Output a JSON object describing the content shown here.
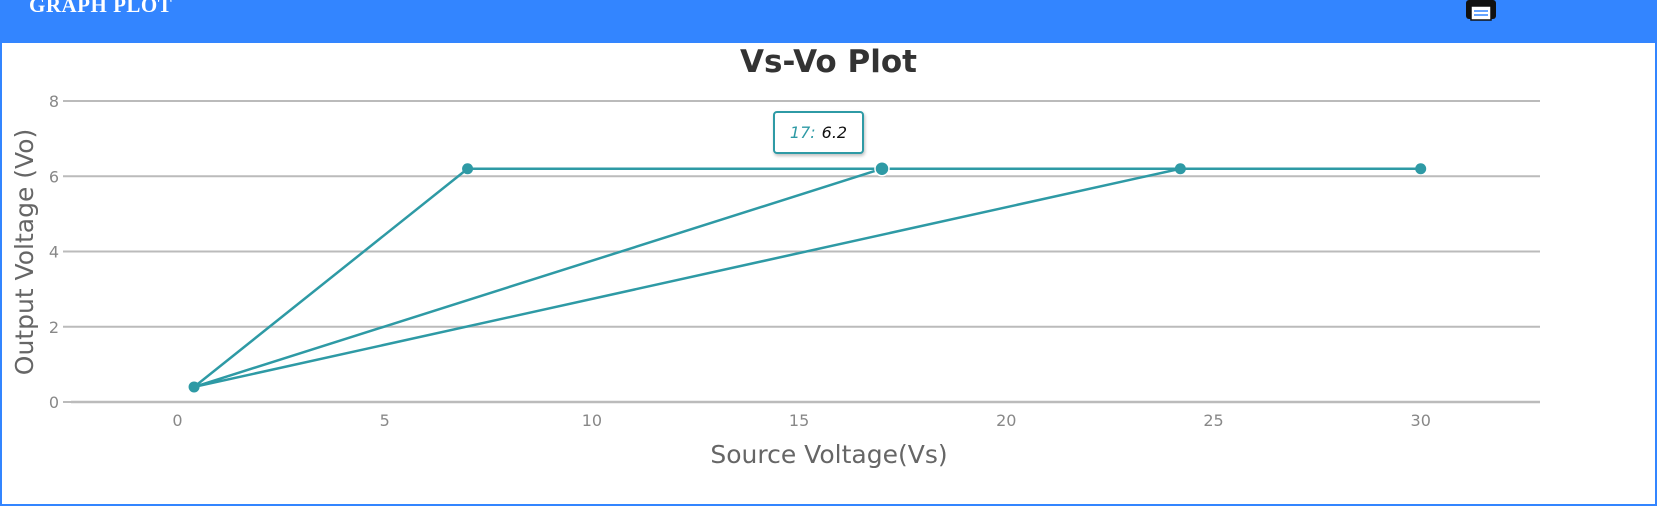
{
  "header": {
    "title": "GRAPH PLOT"
  },
  "colors": {
    "header": "#3385ff",
    "series": "#2e9aa5",
    "grid": "#bbbbbb"
  },
  "icons": {
    "print": "printer-icon"
  },
  "chart_data": {
    "type": "line",
    "title": "Vs-Vo Plot",
    "xlabel": "Source Voltage(Vs)",
    "ylabel": "Output Voltage (Vo)",
    "xlim": [
      -2.5,
      33
    ],
    "ylim": [
      0,
      8
    ],
    "xticks": [
      0,
      5,
      10,
      15,
      20,
      25,
      30
    ],
    "yticks": [
      0,
      2,
      4,
      6,
      8
    ],
    "grid": true,
    "points": [
      [
        0.4,
        0.4
      ],
      [
        7,
        6.2
      ],
      [
        30,
        6.2
      ],
      [
        24.2,
        6.2
      ],
      [
        0.4,
        0.4
      ],
      [
        17,
        6.2
      ],
      [
        0.4,
        0.4
      ]
    ],
    "highlight": {
      "x": 17,
      "y": 6.2
    },
    "tooltip": {
      "x_text": "17:",
      "y_text": "6.2"
    }
  }
}
